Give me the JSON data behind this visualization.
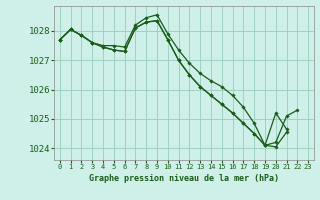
{
  "title": "Graphe pression niveau de la mer (hPa)",
  "bg_color": "#cff0e8",
  "grid_color": "#99ccbb",
  "line_color": "#1a5c1a",
  "marker_color": "#1a5c1a",
  "ylim": [
    1023.6,
    1028.85
  ],
  "yticks": [
    1024,
    1025,
    1026,
    1027,
    1028
  ],
  "xlim": [
    -0.5,
    23.5
  ],
  "xticks": [
    0,
    1,
    2,
    3,
    4,
    5,
    6,
    7,
    8,
    9,
    10,
    11,
    12,
    13,
    14,
    15,
    16,
    17,
    18,
    19,
    20,
    21,
    22,
    23
  ],
  "series": [
    [
      1027.7,
      1028.05,
      1027.85,
      1027.6,
      1027.5,
      1027.5,
      1027.45,
      1028.2,
      1028.45,
      1028.55,
      1027.9,
      1027.35,
      1026.9,
      1026.55,
      1026.3,
      1026.1,
      1025.8,
      1025.4,
      1024.85,
      1024.1,
      1025.2,
      1024.65,
      null,
      null
    ],
    [
      1027.7,
      1028.05,
      1027.85,
      1027.6,
      1027.45,
      1027.35,
      1027.3,
      1028.1,
      1028.3,
      1028.35,
      1027.7,
      1027.0,
      1026.5,
      1026.1,
      1025.8,
      1025.5,
      1025.2,
      1024.85,
      1024.5,
      1024.1,
      1024.05,
      1024.55,
      null,
      null
    ],
    [
      1027.7,
      1028.05,
      1027.85,
      1027.6,
      1027.45,
      1027.35,
      1027.3,
      1028.1,
      1028.3,
      1028.35,
      1027.7,
      1027.0,
      1026.5,
      1026.1,
      1025.8,
      1025.5,
      1025.2,
      1024.85,
      1024.5,
      1024.1,
      1024.2,
      1025.1,
      1025.3,
      null
    ]
  ],
  "ytick_labelsize": 6.5,
  "xtick_labelsize": 5.0
}
